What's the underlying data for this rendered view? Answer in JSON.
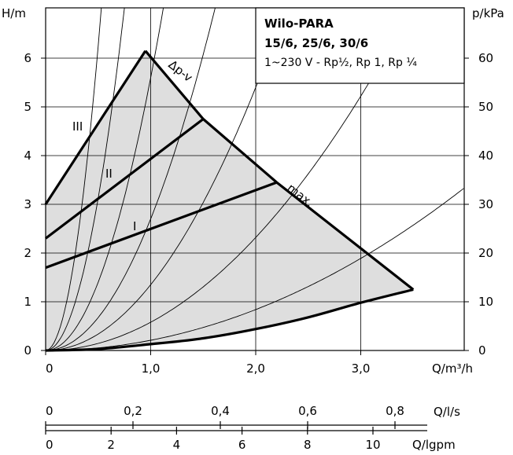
{
  "chart_data": {
    "type": "line",
    "legend": {
      "line1": "Wilo-PARA",
      "line2": "15/6, 25/6, 30/6",
      "line3": "1~230 V - Rp½, Rp 1, Rp ¼"
    },
    "axes": {
      "left_label": "H/m",
      "right_label": "p/kPa",
      "bottom1_label": "Q/m³/h",
      "bottom2_label": "Q/l/s",
      "bottom3_label": "Q/lgpm",
      "h_ticks": [
        "0",
        "1",
        "2",
        "3",
        "4",
        "5",
        "6"
      ],
      "p_ticks": [
        "0",
        "10",
        "20",
        "30",
        "40",
        "50",
        "60"
      ],
      "q_m3h_ticks": [
        "0",
        "1,0",
        "2,0",
        "3,0"
      ],
      "q_ls_ticks": [
        "0",
        "0,2",
        "0,4",
        "0,6",
        "0,8"
      ],
      "q_lgpm_ticks": [
        "0",
        "2",
        "4",
        "6",
        "8",
        "10"
      ],
      "h_range": [
        0,
        6.5
      ],
      "q_m3h_range": [
        0,
        4.0
      ],
      "grid": true
    },
    "curve_labels": {
      "max": "max.",
      "dpv": "Δp-v",
      "III": "III",
      "II": "II",
      "I": "I"
    },
    "max_curve": {
      "x": [
        0.95,
        1.5,
        2.2,
        3.5
      ],
      "y": [
        6.15,
        4.75,
        3.45,
        1.25
      ]
    },
    "dpv_lines": [
      {
        "name": "III",
        "x": [
          0,
          0.95
        ],
        "y": [
          3.0,
          6.15
        ]
      },
      {
        "name": "II",
        "x": [
          0,
          1.5
        ],
        "y": [
          2.3,
          4.75
        ]
      },
      {
        "name": "I",
        "x": [
          0,
          2.2
        ],
        "y": [
          1.7,
          3.45
        ]
      }
    ],
    "min_curve": {
      "x": [
        0,
        0.5,
        1.0,
        1.5,
        2.0,
        2.5,
        3.0,
        3.5
      ],
      "y": [
        0,
        0.03,
        0.13,
        0.25,
        0.44,
        0.68,
        0.98,
        1.25
      ]
    },
    "system_curves": [
      {
        "k": 25.0
      },
      {
        "k": 12.5
      },
      {
        "k": 5.6
      },
      {
        "k": 2.7
      },
      {
        "k": 1.35
      },
      {
        "k": 0.58
      },
      {
        "k": 0.21
      }
    ]
  }
}
